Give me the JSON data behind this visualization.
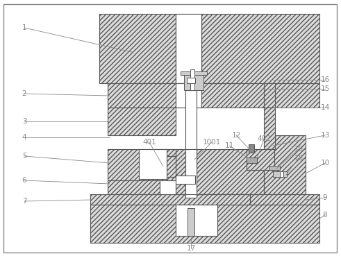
{
  "bg_color": "#ffffff",
  "line_color": "#555555",
  "label_color": "#888888",
  "hatch_fc": "#e8e8e8",
  "figsize": [
    4.91,
    3.69
  ],
  "dpi": 100
}
